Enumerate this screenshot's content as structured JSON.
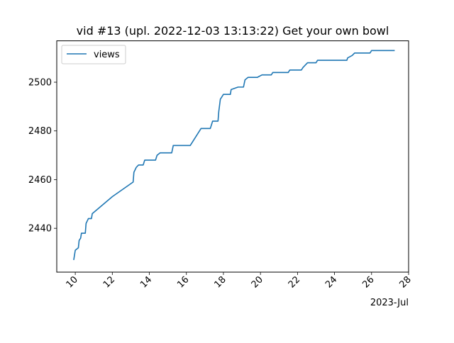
{
  "chart_data": {
    "type": "line",
    "title": "vid #13 (upl. 2022-12-03 13:13:22) Get your own bowl",
    "xlabel": "",
    "ylabel": "",
    "x_offset_label": "2023-Jul",
    "x_ticks": [
      "10",
      "12",
      "14",
      "16",
      "18",
      "20",
      "22",
      "24",
      "26",
      "28"
    ],
    "y_ticks": [
      "2440",
      "2460",
      "2480",
      "2500"
    ],
    "xlim": [
      "2023-07-09 00:00",
      "2023-07-28 00:00"
    ],
    "ylim": [
      2422,
      2517
    ],
    "grid": false,
    "legend": {
      "position": "top-left",
      "entries": [
        "views"
      ]
    },
    "series": [
      {
        "name": "views",
        "color": "#1f77b4",
        "points": [
          [
            "2023-07-09 22:00",
            2427
          ],
          [
            "2023-07-10 00:00",
            2431
          ],
          [
            "2023-07-10 04:00",
            2432
          ],
          [
            "2023-07-10 05:00",
            2435
          ],
          [
            "2023-07-10 07:00",
            2436
          ],
          [
            "2023-07-10 08:00",
            2438
          ],
          [
            "2023-07-10 13:00",
            2438
          ],
          [
            "2023-07-10 14:00",
            2442
          ],
          [
            "2023-07-10 17:00",
            2444
          ],
          [
            "2023-07-10 21:00",
            2444
          ],
          [
            "2023-07-10 22:00",
            2446
          ],
          [
            "2023-07-12 00:00",
            2453
          ],
          [
            "2023-07-13 03:00",
            2459
          ],
          [
            "2023-07-13 04:00",
            2463
          ],
          [
            "2023-07-13 07:00",
            2465
          ],
          [
            "2023-07-13 10:00",
            2466
          ],
          [
            "2023-07-13 16:00",
            2466
          ],
          [
            "2023-07-13 18:00",
            2468
          ],
          [
            "2023-07-14 08:00",
            2468
          ],
          [
            "2023-07-14 10:00",
            2470
          ],
          [
            "2023-07-14 14:00",
            2471
          ],
          [
            "2023-07-15 05:00",
            2471
          ],
          [
            "2023-07-15 07:00",
            2474
          ],
          [
            "2023-07-16 05:00",
            2474
          ],
          [
            "2023-07-16 19:00",
            2481
          ],
          [
            "2023-07-17 07:00",
            2481
          ],
          [
            "2023-07-17 08:00",
            2482
          ],
          [
            "2023-07-17 10:00",
            2484
          ],
          [
            "2023-07-17 17:00",
            2484
          ],
          [
            "2023-07-17 18:00",
            2488
          ],
          [
            "2023-07-17 20:00",
            2493
          ],
          [
            "2023-07-18 00:00",
            2495
          ],
          [
            "2023-07-18 09:00",
            2495
          ],
          [
            "2023-07-18 10:00",
            2497
          ],
          [
            "2023-07-18 19:00",
            2498
          ],
          [
            "2023-07-19 02:00",
            2498
          ],
          [
            "2023-07-19 04:00",
            2501
          ],
          [
            "2023-07-19 08:00",
            2502
          ],
          [
            "2023-07-19 20:00",
            2502
          ],
          [
            "2023-07-20 02:00",
            2503
          ],
          [
            "2023-07-20 14:00",
            2503
          ],
          [
            "2023-07-20 16:00",
            2504
          ],
          [
            "2023-07-21 12:00",
            2504
          ],
          [
            "2023-07-21 14:00",
            2505
          ],
          [
            "2023-07-22 05:00",
            2505
          ],
          [
            "2023-07-22 07:00",
            2506
          ],
          [
            "2023-07-22 10:00",
            2507
          ],
          [
            "2023-07-22 13:00",
            2508
          ],
          [
            "2023-07-23 00:00",
            2508
          ],
          [
            "2023-07-23 02:00",
            2509
          ],
          [
            "2023-07-24 16:00",
            2509
          ],
          [
            "2023-07-24 17:00",
            2510
          ],
          [
            "2023-07-24 23:00",
            2511
          ],
          [
            "2023-07-25 02:00",
            2512
          ],
          [
            "2023-07-25 22:00",
            2512
          ],
          [
            "2023-07-26 00:00",
            2513
          ],
          [
            "2023-07-27 06:00",
            2513
          ]
        ]
      }
    ]
  }
}
